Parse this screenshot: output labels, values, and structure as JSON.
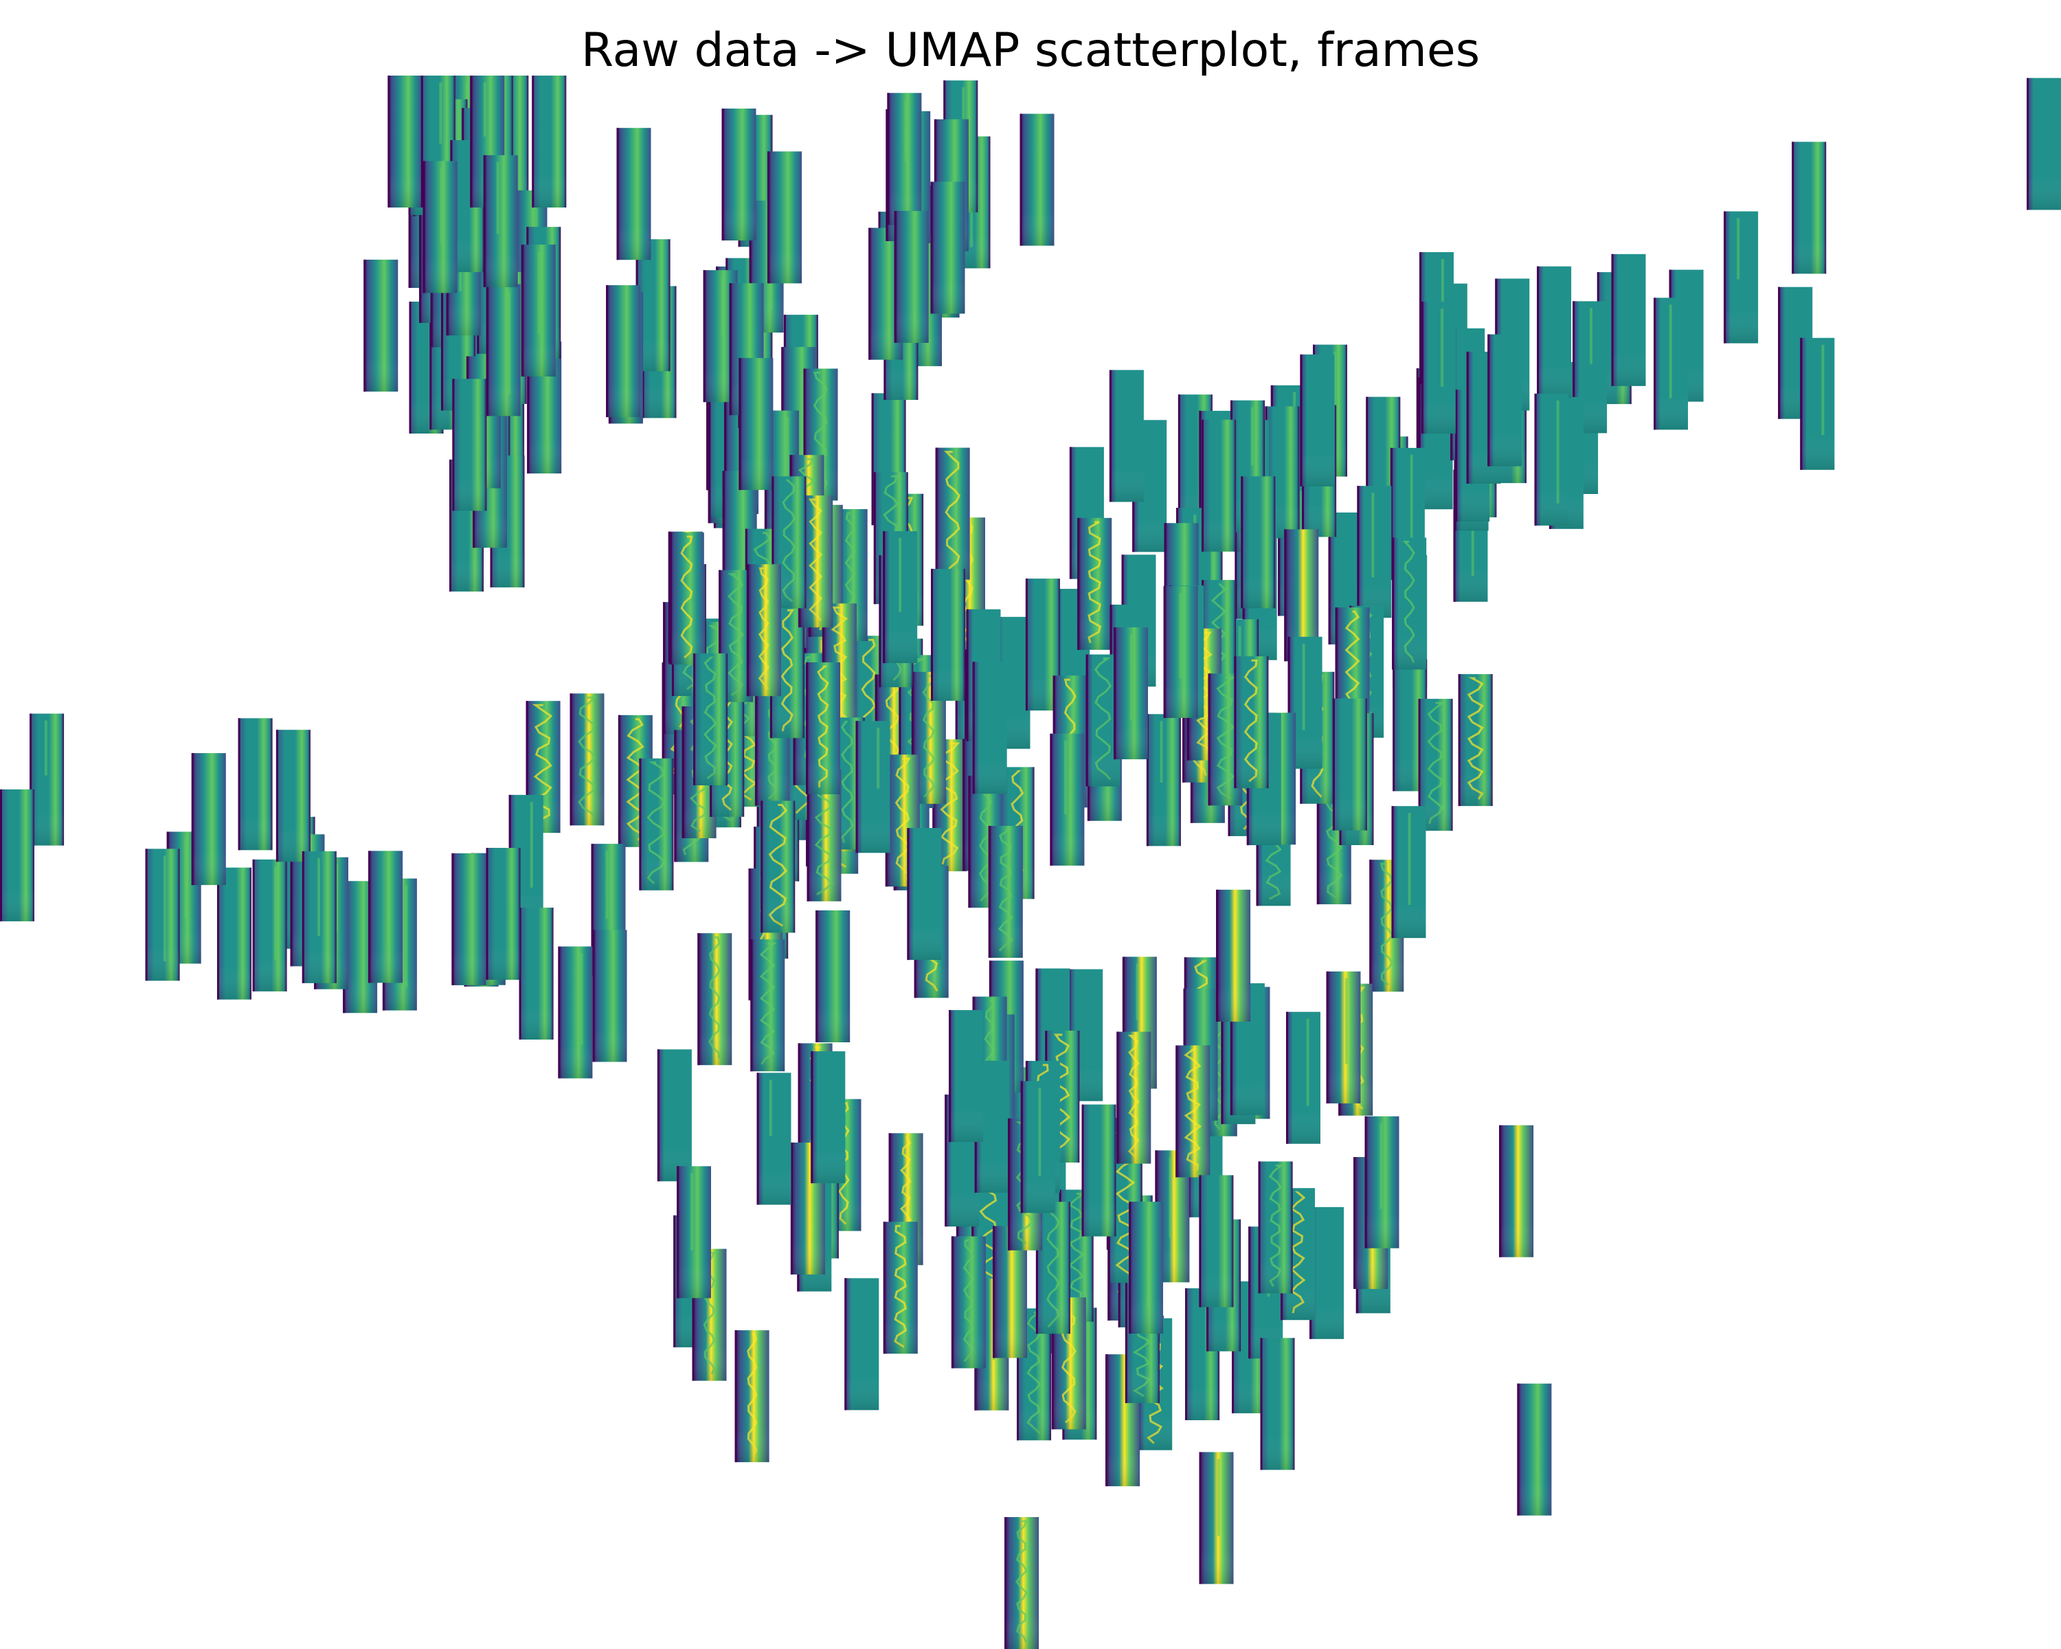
{
  "chart_data": {
    "type": "scatter",
    "title": "Raw data -> UMAP scatterplot, frames",
    "marker": "thumbnail image frames (viridis colormap)",
    "axes_visible": false,
    "grid": false,
    "legend": "none",
    "xlim": [
      0,
      10
    ],
    "ylim": [
      0,
      8
    ],
    "colors": {
      "background": "#ffffff",
      "palette": [
        "#440154",
        "#3b528b",
        "#21918c",
        "#5ec962",
        "#fde725"
      ],
      "frame_base": "#21918c"
    },
    "clusters": [
      {
        "branch": "upper-left",
        "cx": 1.95,
        "cy": 7.05,
        "sx": 0.22,
        "sy": 0.75,
        "n": 46,
        "texture": "banded",
        "tilt": 0.1
      },
      {
        "branch": "upper-mid",
        "cx": 3.3,
        "cy": 6.6,
        "sx": 0.38,
        "sy": 0.45,
        "n": 24,
        "texture": "banded",
        "tilt": 0.0
      },
      {
        "branch": "top-center",
        "cx": 4.4,
        "cy": 7.15,
        "sx": 0.18,
        "sy": 0.45,
        "n": 18,
        "texture": "banded",
        "tilt": 0.0
      },
      {
        "branch": "center",
        "cx": 3.9,
        "cy": 4.7,
        "sx": 0.55,
        "sy": 0.55,
        "n": 78,
        "texture": "wavy",
        "tilt": 0.0
      },
      {
        "branch": "right-arm",
        "cx": 6.9,
        "cy": 6.05,
        "sx": 1.8,
        "sy": 0.35,
        "n": 64,
        "texture": "smooth",
        "tilt": 0.38
      },
      {
        "branch": "right-lower",
        "cx": 6.1,
        "cy": 4.6,
        "sx": 0.55,
        "sy": 0.45,
        "n": 36,
        "texture": "mixed",
        "tilt": 0.0
      },
      {
        "branch": "left-arm",
        "cx": 1.45,
        "cy": 3.7,
        "sx": 0.95,
        "sy": 0.18,
        "n": 24,
        "texture": "banded",
        "tilt": -0.22
      },
      {
        "branch": "bottom",
        "cx": 5.1,
        "cy": 2.2,
        "sx": 1.0,
        "sy": 0.7,
        "n": 86,
        "texture": "mixed",
        "tilt": 0.0
      }
    ]
  }
}
